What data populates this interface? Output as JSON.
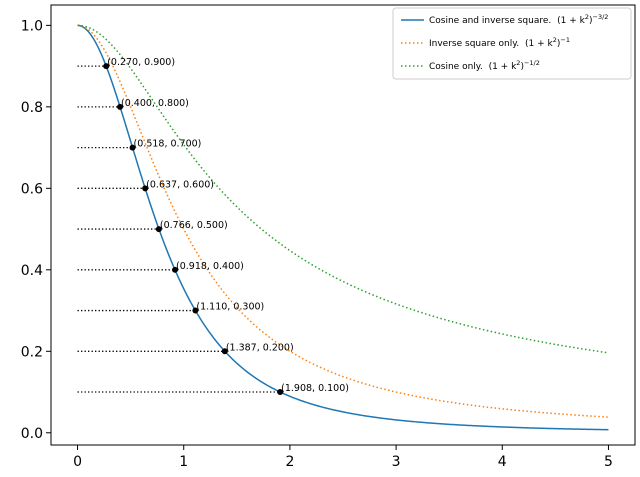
{
  "chart_data": {
    "type": "line",
    "xlim": [
      -0.25,
      5.25
    ],
    "ylim": [
      -0.03,
      1.05
    ],
    "xticks": [
      0,
      1,
      2,
      3,
      4,
      5
    ],
    "yticks": [
      0.0,
      0.2,
      0.4,
      0.6,
      0.8,
      1.0
    ],
    "xtick_labels": [
      "0",
      "1",
      "2",
      "3",
      "4",
      "5"
    ],
    "ytick_labels": [
      "0.0",
      "0.2",
      "0.4",
      "0.6",
      "0.8",
      "1.0"
    ],
    "x_domain": [
      0,
      5
    ],
    "grid": false,
    "legend_position": "top-right",
    "series": [
      {
        "name": "Cosine and inverse square. (1 + k²)⁻³ᐟ²",
        "legend_main": "Cosine and inverse square.",
        "legend_math": "(1 + k",
        "legend_sup1": "2",
        "legend_close": ")",
        "legend_sup2": "−3/2",
        "color": "#1f77b4",
        "style": "solid",
        "exponent": -1.5
      },
      {
        "name": "Inverse square only. (1 + k²)⁻¹",
        "legend_main": "Inverse square only.",
        "legend_math": "(1 + k",
        "legend_sup1": "2",
        "legend_close": ")",
        "legend_sup2": "−1",
        "color": "#ff7f0e",
        "style": "dotted",
        "exponent": -1
      },
      {
        "name": "Cosine only. (1 + k²)⁻¹ᐟ²",
        "legend_main": "Cosine only.",
        "legend_math": "(1 + k",
        "legend_sup1": "2",
        "legend_close": ")",
        "legend_sup2": "−1/2",
        "color": "#2ca02c",
        "style": "dotted",
        "exponent": -0.5
      }
    ],
    "annotations": [
      {
        "x": 0.27,
        "y": 0.9,
        "label": "(0.270, 0.900)"
      },
      {
        "x": 0.4,
        "y": 0.8,
        "label": "(0.400, 0.800)"
      },
      {
        "x": 0.518,
        "y": 0.7,
        "label": "(0.518, 0.700)"
      },
      {
        "x": 0.637,
        "y": 0.6,
        "label": "(0.637, 0.600)"
      },
      {
        "x": 0.766,
        "y": 0.5,
        "label": "(0.766, 0.500)"
      },
      {
        "x": 0.918,
        "y": 0.4,
        "label": "(0.918, 0.400)"
      },
      {
        "x": 1.11,
        "y": 0.3,
        "label": "(1.110, 0.300)"
      },
      {
        "x": 1.387,
        "y": 0.2,
        "label": "(1.387, 0.200)"
      },
      {
        "x": 1.908,
        "y": 0.1,
        "label": "(1.908, 0.100)"
      }
    ]
  }
}
